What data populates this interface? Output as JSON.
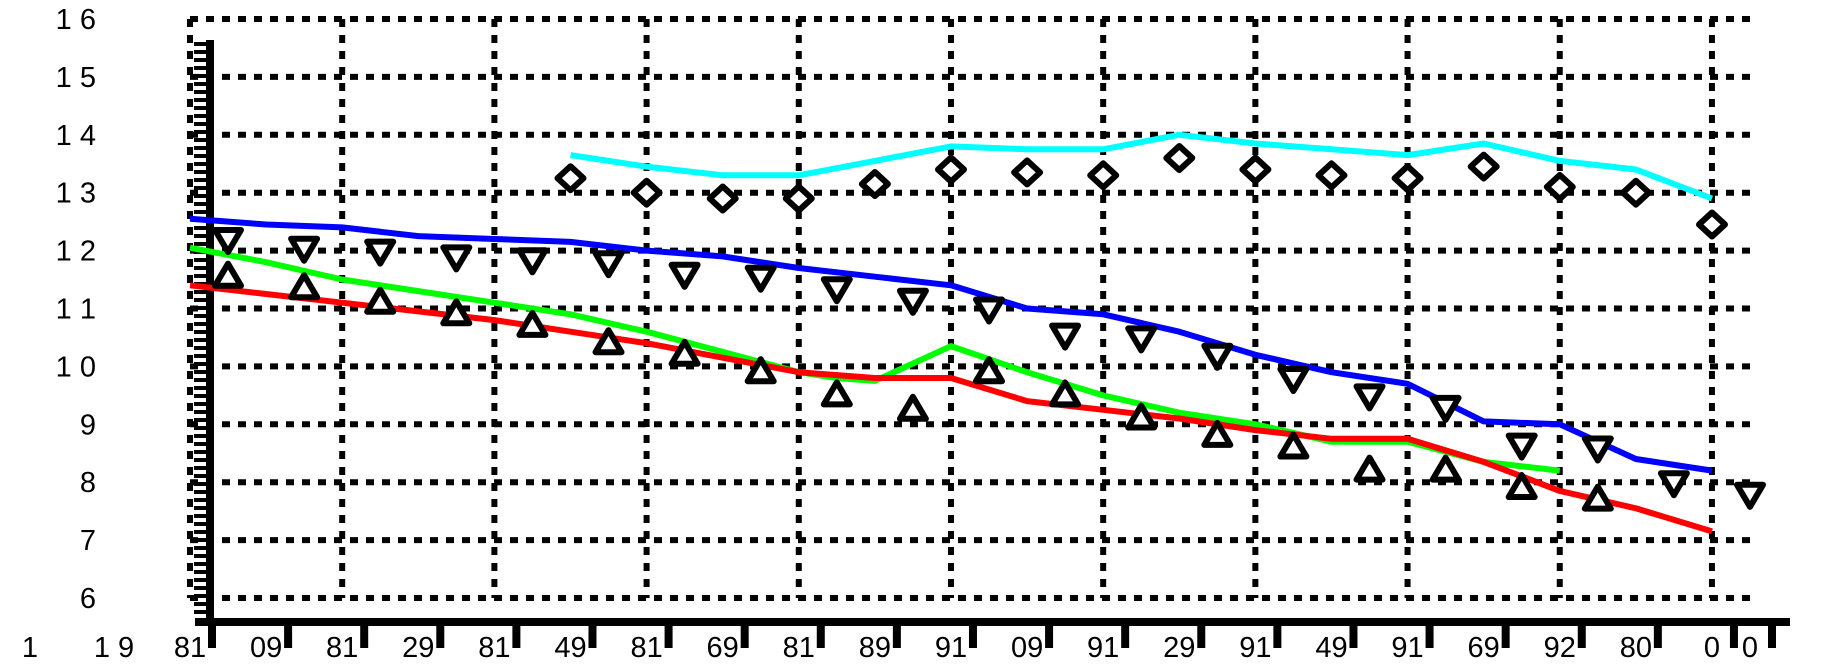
{
  "chart_data": {
    "type": "line",
    "x": [
      1981,
      1985,
      1989,
      1993,
      1997,
      2001,
      2005,
      2009,
      2013,
      2017,
      2021,
      2025,
      2029,
      2033,
      2037,
      2041,
      2045,
      2049,
      2053,
      2057,
      2061,
      2063
    ],
    "xlim": [
      1981,
      2063
    ],
    "ylim": [
      6,
      16
    ],
    "y_ticks": [
      {
        "value": 16,
        "label": "1 6"
      },
      {
        "value": 15,
        "label": "1 5"
      },
      {
        "value": 14,
        "label": "1 4"
      },
      {
        "value": 13,
        "label": "1 3"
      },
      {
        "value": 12,
        "label": "1 2"
      },
      {
        "value": 11,
        "label": "1 1"
      },
      {
        "value": 10,
        "label": "1 0"
      },
      {
        "value": 9,
        "label": "9"
      },
      {
        "value": 8,
        "label": "8"
      },
      {
        "value": 7,
        "label": "7"
      },
      {
        "value": 6,
        "label": "6"
      }
    ],
    "x_ticks": [
      {
        "value": 1977,
        "label": "1 9"
      },
      {
        "value": 1981,
        "label": "81"
      },
      {
        "value": 1985,
        "label": "09"
      },
      {
        "value": 1989,
        "label": "81"
      },
      {
        "value": 1993,
        "label": "29"
      },
      {
        "value": 1997,
        "label": "81"
      },
      {
        "value": 2001,
        "label": "49"
      },
      {
        "value": 2005,
        "label": "81"
      },
      {
        "value": 2009,
        "label": "69"
      },
      {
        "value": 2013,
        "label": "81"
      },
      {
        "value": 2017,
        "label": "89"
      },
      {
        "value": 2021,
        "label": "91"
      },
      {
        "value": 2025,
        "label": "09"
      },
      {
        "value": 2029,
        "label": "91"
      },
      {
        "value": 2033,
        "label": "29"
      },
      {
        "value": 2037,
        "label": "91"
      },
      {
        "value": 2041,
        "label": "49"
      },
      {
        "value": 2045,
        "label": "91"
      },
      {
        "value": 2049,
        "label": "69"
      },
      {
        "value": 2053,
        "label": "92"
      },
      {
        "value": 2057,
        "label": "80"
      },
      {
        "value": 2061,
        "label": "0"
      },
      {
        "value": 2063,
        "label": "0"
      }
    ],
    "grid": true,
    "series": [
      {
        "color": "#00ffff",
        "style": "line",
        "x": [
          2001,
          2005,
          2009,
          2013,
          2017,
          2021,
          2025,
          2029,
          2033,
          2037,
          2041,
          2045,
          2049,
          2053,
          2057,
          2061
        ],
        "y": [
          13.65,
          13.45,
          13.3,
          13.3,
          13.55,
          13.8,
          13.75,
          13.75,
          14.0,
          13.85,
          13.75,
          13.65,
          13.85,
          13.55,
          13.4,
          12.9
        ]
      },
      {
        "color": "#0000ff",
        "style": "line",
        "x": [
          1981,
          1985,
          1989,
          1993,
          1997,
          2001,
          2005,
          2009,
          2013,
          2017,
          2021,
          2025,
          2029,
          2033,
          2037,
          2041,
          2045,
          2049,
          2053,
          2057,
          2061
        ],
        "y": [
          12.55,
          12.45,
          12.4,
          12.25,
          12.2,
          12.15,
          12.0,
          11.9,
          11.7,
          11.55,
          11.4,
          11.0,
          10.9,
          10.6,
          10.2,
          9.9,
          9.7,
          9.05,
          9.0,
          8.4,
          8.2
        ]
      },
      {
        "color": "#00ff00",
        "style": "line",
        "x": [
          1981,
          1985,
          1989,
          1993,
          1997,
          2001,
          2005,
          2009,
          2013,
          2015,
          2017,
          2021,
          2025,
          2029,
          2033,
          2037,
          2041,
          2045,
          2049,
          2053
        ],
        "y": [
          12.05,
          11.8,
          11.5,
          11.3,
          11.1,
          10.9,
          10.6,
          10.25,
          9.9,
          9.8,
          9.75,
          10.35,
          9.9,
          9.5,
          9.2,
          9.0,
          8.7,
          8.7,
          8.35,
          8.2
        ]
      },
      {
        "color": "#ff0000",
        "style": "line",
        "x": [
          1981,
          1985,
          1989,
          1993,
          1997,
          2001,
          2005,
          2009,
          2013,
          2017,
          2021,
          2025,
          2029,
          2033,
          2037,
          2041,
          2045,
          2049,
          2053,
          2057,
          2061
        ],
        "y": [
          11.4,
          11.25,
          11.1,
          10.95,
          10.8,
          10.6,
          10.4,
          10.15,
          9.9,
          9.8,
          9.8,
          9.4,
          9.25,
          9.1,
          8.9,
          8.75,
          8.75,
          8.35,
          7.85,
          7.55,
          7.15
        ]
      },
      {
        "color": "#000000",
        "style": "markers",
        "marker": "diamond",
        "x": [
          2001,
          2005,
          2009,
          2013,
          2017,
          2021,
          2025,
          2029,
          2033,
          2037,
          2041,
          2045,
          2049,
          2053,
          2057,
          2061
        ],
        "y": [
          13.25,
          13.0,
          12.9,
          12.9,
          13.15,
          13.4,
          13.35,
          13.3,
          13.6,
          13.4,
          13.3,
          13.25,
          13.45,
          13.1,
          13.0,
          12.45
        ]
      },
      {
        "color": "#000000",
        "style": "markers",
        "marker": "triangle-down",
        "x": [
          1983,
          1987,
          1991,
          1995,
          1999,
          2003,
          2007,
          2011,
          2015,
          2019,
          2023,
          2027,
          2031,
          2035,
          2039,
          2043,
          2047,
          2051,
          2055,
          2059,
          2063
        ],
        "y": [
          12.2,
          12.05,
          12.0,
          11.9,
          11.85,
          11.8,
          11.6,
          11.55,
          11.35,
          11.15,
          11.0,
          10.55,
          10.5,
          10.2,
          9.8,
          9.5,
          9.3,
          8.65,
          8.6,
          8.0,
          7.8
        ]
      },
      {
        "color": "#000000",
        "style": "markers",
        "marker": "triangle-up",
        "x": [
          1983,
          1987,
          1991,
          1995,
          1999,
          2003,
          2007,
          2011,
          2015,
          2019,
          2023,
          2027,
          2031,
          2035,
          2039,
          2043,
          2047,
          2051,
          2055
        ],
        "y": [
          11.55,
          11.35,
          11.1,
          10.9,
          10.7,
          10.4,
          10.2,
          9.9,
          9.5,
          9.25,
          9.9,
          9.5,
          9.1,
          8.8,
          8.6,
          8.2,
          8.2,
          7.9,
          7.7
        ]
      }
    ]
  }
}
